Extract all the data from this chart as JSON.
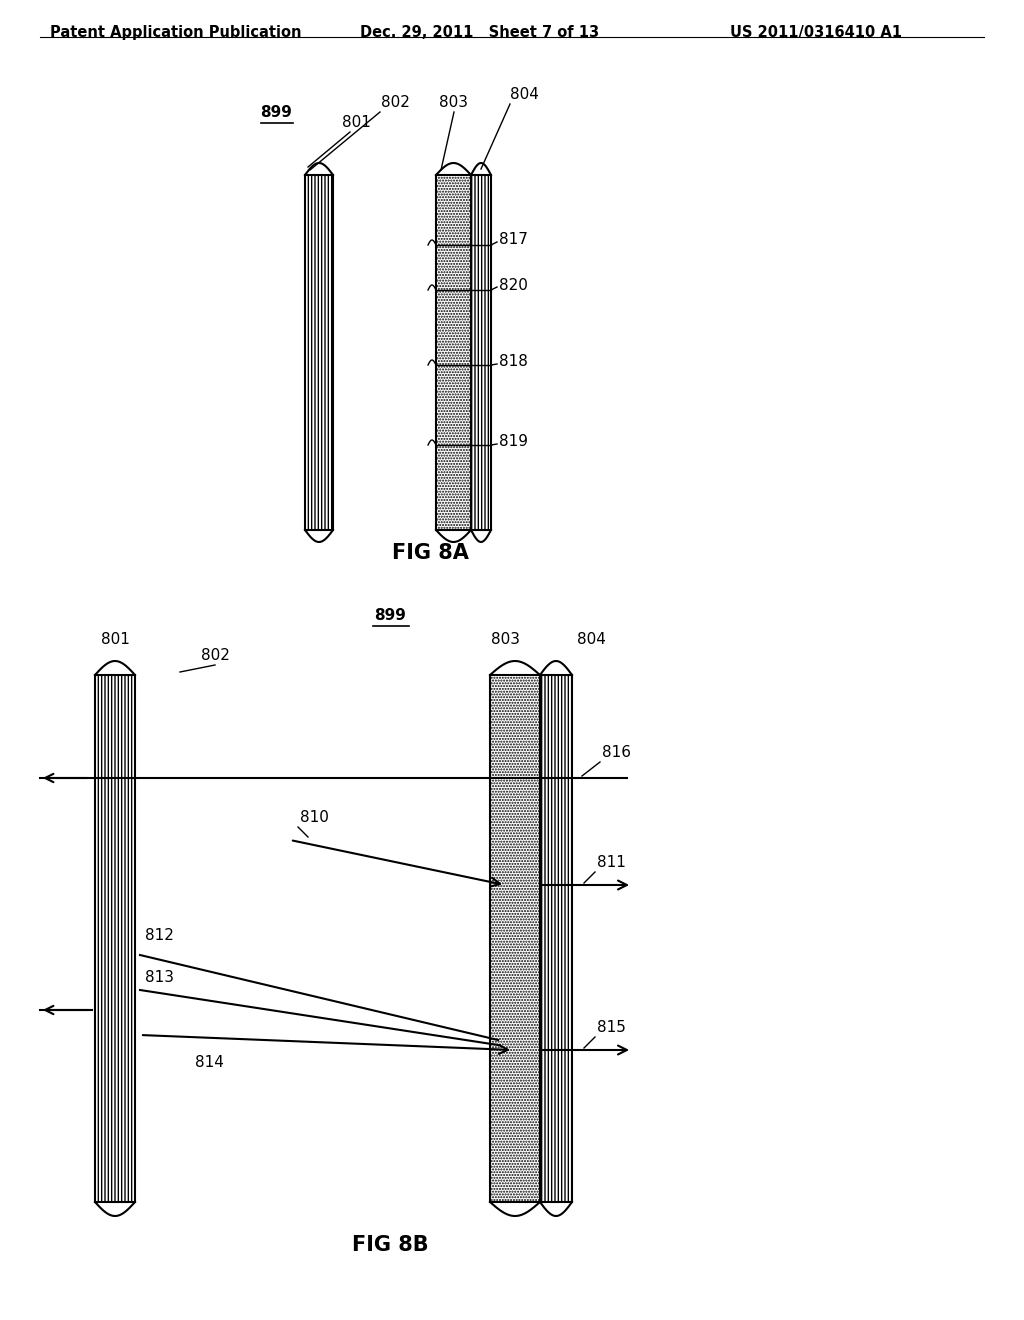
{
  "bg_color": "#ffffff",
  "header_left": "Patent Application Publication",
  "header_mid": "Dec. 29, 2011   Sheet 7 of 13",
  "header_right": "US 2011/0316410 A1",
  "fig8a_label": "FIG 8A",
  "fig8b_label": "FIG 8B",
  "fig8a": {
    "label_899": "899",
    "label_801": "801",
    "label_802": "802",
    "label_803": "803",
    "label_804": "804",
    "label_817": "817",
    "label_820": "820",
    "label_818": "818",
    "label_819": "819"
  },
  "fig8b": {
    "label_899": "899",
    "label_801": "801",
    "label_802": "802",
    "label_803": "803",
    "label_804": "804",
    "label_810": "810",
    "label_811": "811",
    "label_812": "812",
    "label_813": "813",
    "label_814": "814",
    "label_815": "815",
    "label_816": "816"
  }
}
